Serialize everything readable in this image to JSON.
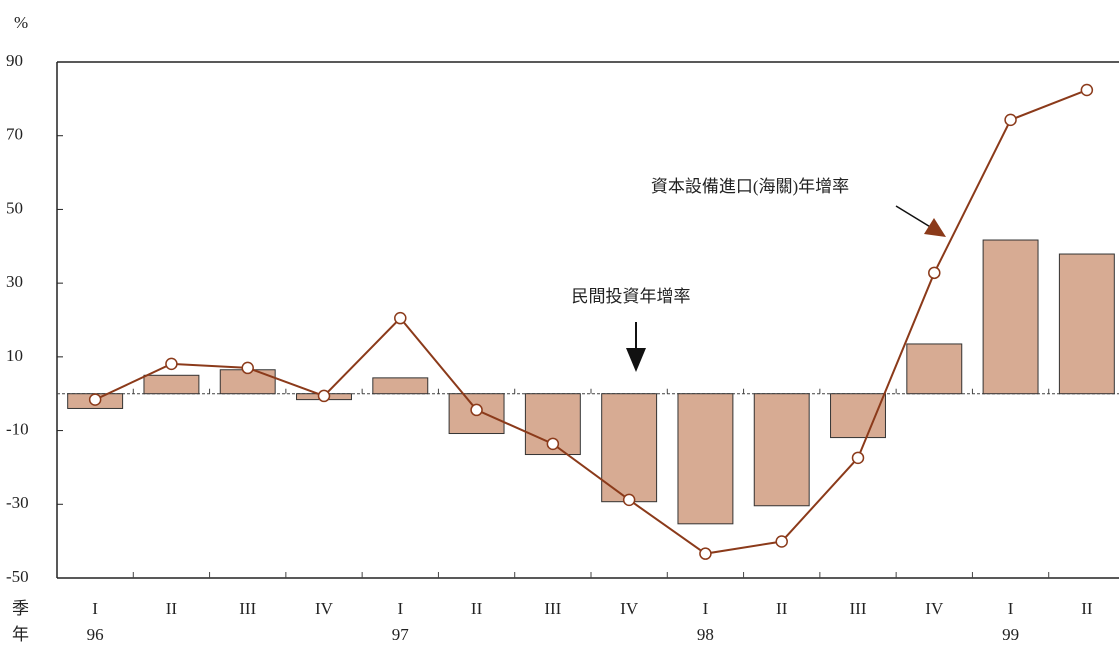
{
  "chart_data": {
    "type": "combo",
    "y_unit": "%",
    "row_labels": [
      "季",
      "年"
    ],
    "categories": [
      "I",
      "II",
      "III",
      "IV",
      "I",
      "II",
      "III",
      "IV",
      "I",
      "II",
      "III",
      "IV",
      "I",
      "II"
    ],
    "years": [
      "96",
      null,
      null,
      null,
      "97",
      null,
      null,
      null,
      "98",
      null,
      null,
      null,
      "99",
      null
    ],
    "series": [
      {
        "name": "民間投資年增率",
        "type": "bar",
        "color": "#d7ab93",
        "values": [
          -4,
          5,
          6.5,
          -1.6,
          4.3,
          -10.8,
          -16.5,
          -29.3,
          -35.3,
          -30.4,
          -11.9,
          13.5,
          41.7,
          37.9
        ]
      },
      {
        "name": "資本設備進口(海關)年增率",
        "type": "line",
        "color": "#8b3a1a",
        "values": [
          -1.6,
          8.1,
          7,
          -0.6,
          20.5,
          -4.4,
          -13.6,
          -28.8,
          -43.4,
          -40.1,
          -17.4,
          32.8,
          74.3,
          82.4
        ]
      }
    ],
    "ylim": [
      -50,
      90
    ],
    "yticks": [
      -50,
      -30,
      -10,
      10,
      30,
      50,
      70,
      90
    ]
  }
}
